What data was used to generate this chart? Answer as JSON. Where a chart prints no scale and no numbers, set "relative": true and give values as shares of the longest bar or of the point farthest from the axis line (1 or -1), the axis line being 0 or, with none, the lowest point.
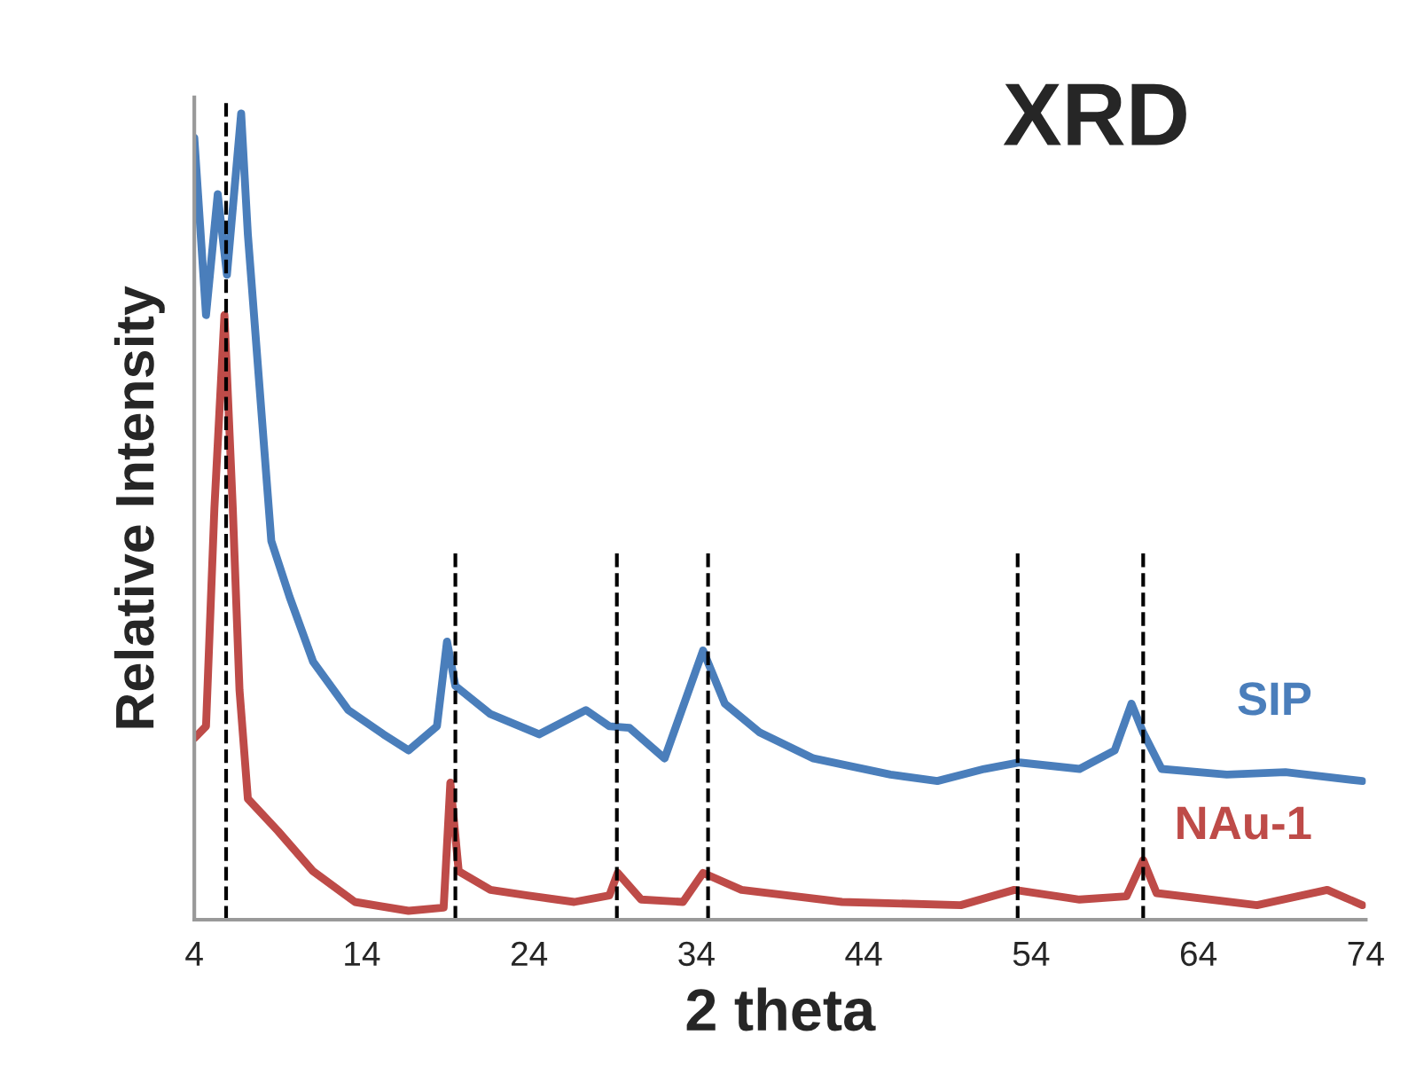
{
  "chart_data": {
    "type": "line",
    "title": "XRD",
    "xlabel": "2 theta",
    "ylabel": "Relative Intensity",
    "relative": true,
    "xlim": [
      4,
      74
    ],
    "xticks": [
      4,
      14,
      24,
      34,
      44,
      54,
      64,
      74
    ],
    "grid": false,
    "legend": false,
    "marker": "none",
    "line_style": "solid",
    "series": [
      {
        "name": "SIP",
        "color": "#4a7ebb",
        "x": [
          4.0,
          4.7,
          5.4,
          5.95,
          6.8,
          7.2,
          7.9,
          8.6,
          9.7,
          11.1,
          13.2,
          15.3,
          16.8,
          18.5,
          19.1,
          19.6,
          21.7,
          24.6,
          27.4,
          28.8,
          30.0,
          32.1,
          34.4,
          35.7,
          37.8,
          41.0,
          45.6,
          48.4,
          51.2,
          53.3,
          56.9,
          59.0,
          60.0,
          60.7,
          61.8,
          65.7,
          69.2,
          73.8
        ],
        "values": [
          0.97,
          0.75,
          0.9,
          0.8,
          1.0,
          0.85,
          0.66,
          0.47,
          0.4,
          0.32,
          0.26,
          0.23,
          0.21,
          0.24,
          0.345,
          0.29,
          0.255,
          0.23,
          0.26,
          0.24,
          0.238,
          0.2,
          0.334,
          0.268,
          0.232,
          0.2,
          0.18,
          0.172,
          0.187,
          0.195,
          0.187,
          0.21,
          0.268,
          0.232,
          0.187,
          0.18,
          0.183,
          0.172
        ]
      },
      {
        "name": "NAu-1",
        "color": "#be4b48",
        "x": [
          4.0,
          4.7,
          5.2,
          5.8,
          6.3,
          6.7,
          7.2,
          9.0,
          11.1,
          13.6,
          16.8,
          18.9,
          19.3,
          19.8,
          21.7,
          23.9,
          26.7,
          28.8,
          29.3,
          30.7,
          33.2,
          34.4,
          36.7,
          42.7,
          49.8,
          53.0,
          56.9,
          59.7,
          60.7,
          61.5,
          67.5,
          71.7,
          73.8
        ],
        "values": [
          0.225,
          0.24,
          0.51,
          0.75,
          0.51,
          0.285,
          0.15,
          0.11,
          0.06,
          0.022,
          0.011,
          0.015,
          0.17,
          0.06,
          0.037,
          0.03,
          0.022,
          0.03,
          0.058,
          0.025,
          0.022,
          0.058,
          0.037,
          0.022,
          0.018,
          0.037,
          0.025,
          0.029,
          0.074,
          0.033,
          0.018,
          0.037,
          0.018
        ]
      }
    ],
    "ref_lines": [
      {
        "axis": "x",
        "value": 5.9,
        "color": "#000000",
        "line_style": "dashed"
      },
      {
        "axis": "x",
        "value": 19.6,
        "color": "#000000",
        "line_style": "dashed"
      },
      {
        "axis": "x",
        "value": 29.25,
        "color": "#000000",
        "line_style": "dashed"
      },
      {
        "axis": "x",
        "value": 34.7,
        "color": "#000000",
        "line_style": "dashed"
      },
      {
        "axis": "x",
        "value": 53.2,
        "color": "#000000",
        "line_style": "dashed"
      },
      {
        "axis": "x",
        "value": 60.7,
        "color": "#000000",
        "line_style": "dashed"
      }
    ]
  }
}
